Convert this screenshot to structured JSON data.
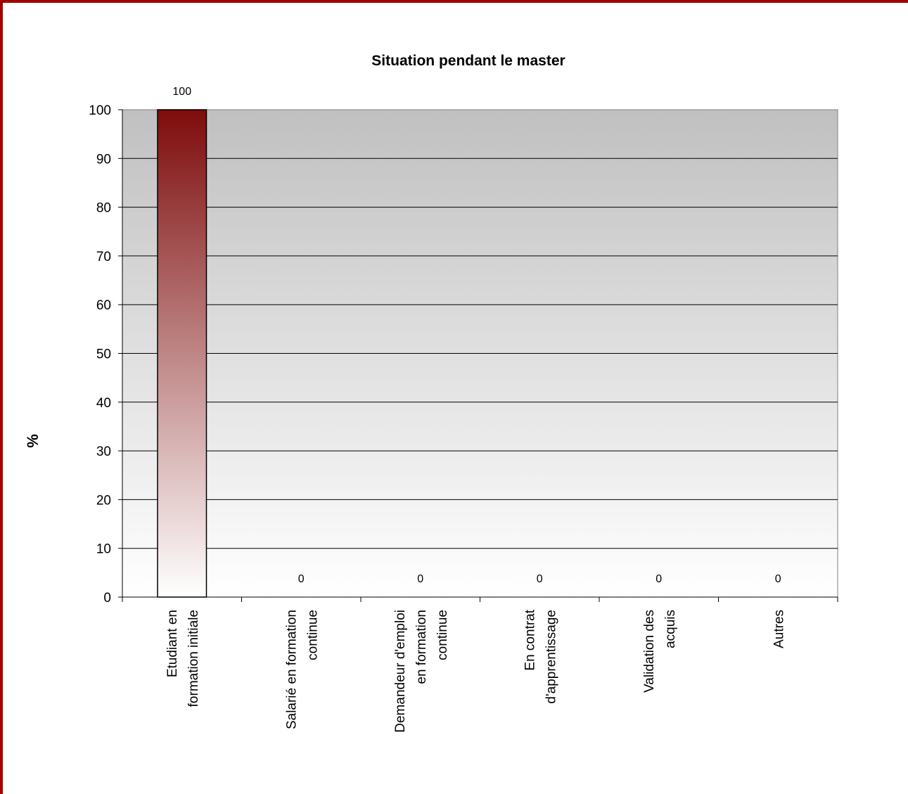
{
  "chart_data": {
    "type": "bar",
    "title": "Situation pendant le master",
    "xlabel": "",
    "ylabel": "%",
    "ylim": [
      0,
      100
    ],
    "yticks": [
      0,
      10,
      20,
      30,
      40,
      50,
      60,
      70,
      80,
      90,
      100
    ],
    "grid": true,
    "categories": [
      [
        "Etudiant en",
        "formation initiale"
      ],
      [
        "Salarié en formation",
        "continue"
      ],
      [
        "Demandeur d'emploi",
        "en formation",
        "continue"
      ],
      [
        "En contrat",
        "d'apprentissage"
      ],
      [
        "Validation des",
        "acquis"
      ],
      [
        "Autres"
      ]
    ],
    "values": [
      100,
      0,
      0,
      0,
      0,
      0
    ],
    "colors": {
      "frame": "#a00000",
      "bar_top": "#7e0c0c",
      "bar_bottom": "#ffffff",
      "plot_top": "#c0c0c0",
      "plot_bottom": "#ffffff",
      "gridline": "#000000"
    }
  }
}
